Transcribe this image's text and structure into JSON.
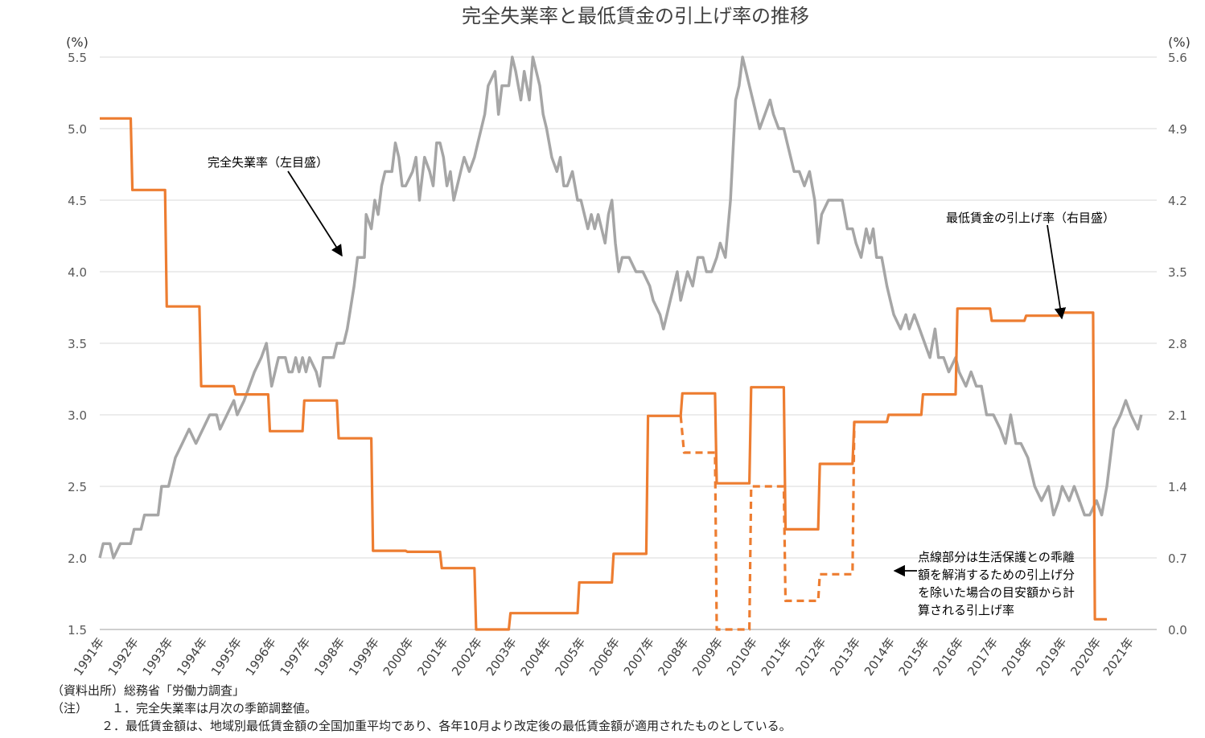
{
  "chart_data": {
    "type": "line",
    "title": "完全失業率と最低賃金の引上げ率の推移",
    "y_left": {
      "unit": "(%)",
      "range": [
        1.5,
        5.5
      ],
      "ticks": [
        "1.5",
        "2.0",
        "2.5",
        "3.0",
        "3.5",
        "4.0",
        "4.5",
        "5.0",
        "5.5"
      ]
    },
    "y_right": {
      "unit": "(%)",
      "range": [
        0.0,
        5.6
      ],
      "ticks": [
        "0.0",
        "0.7",
        "1.4",
        "2.1",
        "2.8",
        "3.5",
        "4.2",
        "4.9",
        "5.6"
      ]
    },
    "x_range": [
      1991,
      2021.75
    ],
    "x_tick_labels": [
      "1991年",
      "1992年",
      "1993年",
      "1994年",
      "1995年",
      "1996年",
      "1997年",
      "1998年",
      "1999年",
      "2000年",
      "2001年",
      "2002年",
      "2003年",
      "2004年",
      "2005年",
      "2006年",
      "2007年",
      "2008年",
      "2009年",
      "2010年",
      "2011年",
      "2012年",
      "2013年",
      "2014年",
      "2015年",
      "2016年",
      "2017年",
      "2018年",
      "2019年",
      "2020年",
      "2021年"
    ],
    "grid": true,
    "series": [
      {
        "name": "完全失業率（左目盛）",
        "axis": "left",
        "color": "#a6a6a6",
        "points": [
          [
            1991.0,
            2.0
          ],
          [
            1991.1,
            2.1
          ],
          [
            1991.3,
            2.1
          ],
          [
            1991.4,
            2.0
          ],
          [
            1991.6,
            2.1
          ],
          [
            1991.9,
            2.1
          ],
          [
            1992.0,
            2.2
          ],
          [
            1992.2,
            2.2
          ],
          [
            1992.3,
            2.3
          ],
          [
            1992.7,
            2.3
          ],
          [
            1992.8,
            2.5
          ],
          [
            1993.0,
            2.5
          ],
          [
            1993.2,
            2.7
          ],
          [
            1993.4,
            2.8
          ],
          [
            1993.6,
            2.9
          ],
          [
            1993.8,
            2.8
          ],
          [
            1994.0,
            2.9
          ],
          [
            1994.2,
            3.0
          ],
          [
            1994.4,
            3.0
          ],
          [
            1994.5,
            2.9
          ],
          [
            1994.7,
            3.0
          ],
          [
            1994.9,
            3.1
          ],
          [
            1995.0,
            3.0
          ],
          [
            1995.2,
            3.1
          ],
          [
            1995.5,
            3.3
          ],
          [
            1995.7,
            3.4
          ],
          [
            1995.85,
            3.5
          ],
          [
            1996.0,
            3.2
          ],
          [
            1996.2,
            3.4
          ],
          [
            1996.4,
            3.4
          ],
          [
            1996.5,
            3.3
          ],
          [
            1996.6,
            3.3
          ],
          [
            1996.7,
            3.4
          ],
          [
            1996.8,
            3.3
          ],
          [
            1996.9,
            3.4
          ],
          [
            1997.0,
            3.3
          ],
          [
            1997.1,
            3.4
          ],
          [
            1997.3,
            3.3
          ],
          [
            1997.4,
            3.2
          ],
          [
            1997.5,
            3.4
          ],
          [
            1997.8,
            3.4
          ],
          [
            1997.9,
            3.5
          ],
          [
            1998.1,
            3.5
          ],
          [
            1998.2,
            3.6
          ],
          [
            1998.4,
            3.9
          ],
          [
            1998.5,
            4.1
          ],
          [
            1998.7,
            4.1
          ],
          [
            1998.75,
            4.4
          ],
          [
            1998.9,
            4.3
          ],
          [
            1999.0,
            4.5
          ],
          [
            1999.1,
            4.4
          ],
          [
            1999.2,
            4.6
          ],
          [
            1999.3,
            4.7
          ],
          [
            1999.5,
            4.7
          ],
          [
            1999.6,
            4.9
          ],
          [
            1999.7,
            4.8
          ],
          [
            1999.8,
            4.6
          ],
          [
            1999.9,
            4.6
          ],
          [
            2000.1,
            4.7
          ],
          [
            2000.2,
            4.8
          ],
          [
            2000.3,
            4.5
          ],
          [
            2000.45,
            4.8
          ],
          [
            2000.6,
            4.7
          ],
          [
            2000.7,
            4.6
          ],
          [
            2000.8,
            4.9
          ],
          [
            2000.9,
            4.9
          ],
          [
            2001.0,
            4.8
          ],
          [
            2001.1,
            4.6
          ],
          [
            2001.2,
            4.7
          ],
          [
            2001.3,
            4.5
          ],
          [
            2001.4,
            4.6
          ],
          [
            2001.5,
            4.7
          ],
          [
            2001.6,
            4.8
          ],
          [
            2001.75,
            4.7
          ],
          [
            2001.9,
            4.8
          ],
          [
            2002.0,
            4.9
          ],
          [
            2002.1,
            5.0
          ],
          [
            2002.2,
            5.1
          ],
          [
            2002.3,
            5.3
          ],
          [
            2002.5,
            5.4
          ],
          [
            2002.6,
            5.1
          ],
          [
            2002.7,
            5.3
          ],
          [
            2002.9,
            5.3
          ],
          [
            2003.0,
            5.5
          ],
          [
            2003.1,
            5.4
          ],
          [
            2003.25,
            5.2
          ],
          [
            2003.35,
            5.4
          ],
          [
            2003.5,
            5.2
          ],
          [
            2003.6,
            5.5
          ],
          [
            2003.8,
            5.3
          ],
          [
            2003.9,
            5.1
          ],
          [
            2004.0,
            5.0
          ],
          [
            2004.15,
            4.8
          ],
          [
            2004.3,
            4.7
          ],
          [
            2004.4,
            4.8
          ],
          [
            2004.5,
            4.6
          ],
          [
            2004.6,
            4.6
          ],
          [
            2004.75,
            4.7
          ],
          [
            2004.9,
            4.5
          ],
          [
            2005.0,
            4.5
          ],
          [
            2005.1,
            4.4
          ],
          [
            2005.2,
            4.3
          ],
          [
            2005.3,
            4.4
          ],
          [
            2005.4,
            4.3
          ],
          [
            2005.5,
            4.4
          ],
          [
            2005.6,
            4.3
          ],
          [
            2005.7,
            4.2
          ],
          [
            2005.8,
            4.4
          ],
          [
            2005.9,
            4.5
          ],
          [
            2006.0,
            4.2
          ],
          [
            2006.1,
            4.0
          ],
          [
            2006.2,
            4.1
          ],
          [
            2006.4,
            4.1
          ],
          [
            2006.6,
            4.0
          ],
          [
            2006.8,
            4.0
          ],
          [
            2007.0,
            3.9
          ],
          [
            2007.1,
            3.8
          ],
          [
            2007.3,
            3.7
          ],
          [
            2007.4,
            3.6
          ],
          [
            2007.5,
            3.7
          ],
          [
            2007.6,
            3.8
          ],
          [
            2007.7,
            3.9
          ],
          [
            2007.8,
            4.0
          ],
          [
            2007.85,
            3.9
          ],
          [
            2007.9,
            3.8
          ],
          [
            2008.0,
            3.9
          ],
          [
            2008.1,
            4.0
          ],
          [
            2008.25,
            3.9
          ],
          [
            2008.4,
            4.1
          ],
          [
            2008.55,
            4.1
          ],
          [
            2008.65,
            4.0
          ],
          [
            2008.8,
            4.0
          ],
          [
            2008.95,
            4.1
          ],
          [
            2009.05,
            4.2
          ],
          [
            2009.2,
            4.1
          ],
          [
            2009.35,
            4.5
          ],
          [
            2009.5,
            5.2
          ],
          [
            2009.6,
            5.3
          ],
          [
            2009.7,
            5.5
          ],
          [
            2009.8,
            5.4
          ],
          [
            2009.9,
            5.3
          ],
          [
            2010.0,
            5.2
          ],
          [
            2010.1,
            5.1
          ],
          [
            2010.2,
            5.0
          ],
          [
            2010.35,
            5.1
          ],
          [
            2010.5,
            5.2
          ],
          [
            2010.6,
            5.1
          ],
          [
            2010.75,
            5.0
          ],
          [
            2010.9,
            5.0
          ],
          [
            2011.0,
            4.9
          ],
          [
            2011.2,
            4.7
          ],
          [
            2011.35,
            4.7
          ],
          [
            2011.5,
            4.6
          ],
          [
            2011.65,
            4.7
          ],
          [
            2011.8,
            4.5
          ],
          [
            2011.9,
            4.2
          ],
          [
            2012.0,
            4.4
          ],
          [
            2012.2,
            4.5
          ],
          [
            2012.6,
            4.5
          ],
          [
            2012.75,
            4.3
          ],
          [
            2012.9,
            4.3
          ],
          [
            2013.0,
            4.2
          ],
          [
            2013.15,
            4.1
          ],
          [
            2013.3,
            4.3
          ],
          [
            2013.4,
            4.2
          ],
          [
            2013.5,
            4.3
          ],
          [
            2013.6,
            4.1
          ],
          [
            2013.75,
            4.1
          ],
          [
            2013.9,
            3.9
          ],
          [
            2014.0,
            3.8
          ],
          [
            2014.1,
            3.7
          ],
          [
            2014.3,
            3.6
          ],
          [
            2014.45,
            3.7
          ],
          [
            2014.55,
            3.6
          ],
          [
            2014.7,
            3.7
          ],
          [
            2014.85,
            3.6
          ],
          [
            2015.0,
            3.5
          ],
          [
            2015.15,
            3.4
          ],
          [
            2015.3,
            3.6
          ],
          [
            2015.4,
            3.4
          ],
          [
            2015.55,
            3.4
          ],
          [
            2015.7,
            3.3
          ],
          [
            2015.9,
            3.4
          ],
          [
            2016.0,
            3.3
          ],
          [
            2016.2,
            3.2
          ],
          [
            2016.35,
            3.3
          ],
          [
            2016.5,
            3.2
          ],
          [
            2016.65,
            3.2
          ],
          [
            2016.8,
            3.0
          ],
          [
            2017.0,
            3.0
          ],
          [
            2017.2,
            2.9
          ],
          [
            2017.35,
            2.8
          ],
          [
            2017.5,
            3.0
          ],
          [
            2017.65,
            2.8
          ],
          [
            2017.8,
            2.8
          ],
          [
            2018.0,
            2.7
          ],
          [
            2018.2,
            2.5
          ],
          [
            2018.4,
            2.4
          ],
          [
            2018.6,
            2.5
          ],
          [
            2018.75,
            2.3
          ],
          [
            2018.9,
            2.4
          ],
          [
            2019.0,
            2.5
          ],
          [
            2019.2,
            2.4
          ],
          [
            2019.35,
            2.5
          ],
          [
            2019.5,
            2.4
          ],
          [
            2019.65,
            2.3
          ],
          [
            2019.8,
            2.3
          ],
          [
            2020.0,
            2.4
          ],
          [
            2020.15,
            2.3
          ],
          [
            2020.3,
            2.5
          ],
          [
            2020.5,
            2.9
          ],
          [
            2020.7,
            3.0
          ],
          [
            2020.85,
            3.1
          ],
          [
            2021.0,
            3.0
          ],
          [
            2021.2,
            2.9
          ],
          [
            2021.3,
            3.0
          ]
        ]
      },
      {
        "name": "最低賃金の引上げ率（右目盛）",
        "axis": "right",
        "color": "#ed7d31",
        "points": [
          [
            1991.0,
            5.0
          ],
          [
            1991.9,
            5.0
          ],
          [
            1991.95,
            4.3
          ],
          [
            1992.9,
            4.3
          ],
          [
            1992.95,
            3.16
          ],
          [
            1993.9,
            3.16
          ],
          [
            1993.95,
            2.38
          ],
          [
            1994.9,
            2.38
          ],
          [
            1994.95,
            2.3
          ],
          [
            1995.9,
            2.3
          ],
          [
            1995.95,
            1.94
          ],
          [
            1996.9,
            1.94
          ],
          [
            1996.95,
            2.24
          ],
          [
            1997.9,
            2.24
          ],
          [
            1997.95,
            1.87
          ],
          [
            1998.9,
            1.87
          ],
          [
            1998.95,
            0.77
          ],
          [
            1999.9,
            0.77
          ],
          [
            1999.95,
            0.76
          ],
          [
            2000.9,
            0.76
          ],
          [
            2000.95,
            0.6
          ],
          [
            2001.9,
            0.6
          ],
          [
            2001.95,
            0.0
          ],
          [
            2002.9,
            0.0
          ],
          [
            2002.95,
            0.16
          ],
          [
            2004.9,
            0.16
          ],
          [
            2004.95,
            0.46
          ],
          [
            2005.9,
            0.46
          ],
          [
            2005.95,
            0.74
          ],
          [
            2006.9,
            0.74
          ],
          [
            2006.95,
            2.09
          ],
          [
            2007.9,
            2.09
          ],
          [
            2007.95,
            2.31
          ],
          [
            2008.9,
            2.31
          ],
          [
            2008.95,
            1.43
          ],
          [
            2009.9,
            1.43
          ],
          [
            2009.95,
            2.37
          ],
          [
            2010.9,
            2.37
          ],
          [
            2010.95,
            0.98
          ],
          [
            2011.9,
            0.98
          ],
          [
            2011.95,
            1.62
          ],
          [
            2012.9,
            1.62
          ],
          [
            2012.95,
            2.03
          ],
          [
            2013.9,
            2.03
          ],
          [
            2013.95,
            2.1
          ],
          [
            2014.9,
            2.1
          ],
          [
            2014.95,
            2.3
          ],
          [
            2015.9,
            2.3
          ],
          [
            2015.95,
            3.14
          ],
          [
            2016.9,
            3.14
          ],
          [
            2016.95,
            3.02
          ],
          [
            2017.9,
            3.02
          ],
          [
            2017.95,
            3.07
          ],
          [
            2018.9,
            3.07
          ],
          [
            2018.95,
            3.1
          ],
          [
            2019.9,
            3.1
          ],
          [
            2019.95,
            0.1
          ],
          [
            2020.3,
            0.1
          ]
        ]
      },
      {
        "name": "点線部分（乖離解消分を除いた引上げ率）",
        "axis": "right",
        "color": "#ed7d31",
        "style": "dashed",
        "points": [
          [
            2007.9,
            2.09
          ],
          [
            2008.0,
            1.73
          ],
          [
            2008.9,
            1.73
          ],
          [
            2008.95,
            0.0
          ],
          [
            2009.9,
            0.0
          ],
          [
            2009.95,
            1.4
          ],
          [
            2010.9,
            1.4
          ],
          [
            2010.95,
            0.28
          ],
          [
            2011.9,
            0.28
          ],
          [
            2011.95,
            0.54
          ],
          [
            2012.9,
            0.54
          ],
          [
            2012.95,
            2.03
          ]
        ]
      }
    ],
    "annotations": {
      "unemployment_label": "完全失業率（左目盛）",
      "wage_label": "最低賃金の引上げ率（右目盛）",
      "dashed_note": [
        "点線部分は生活保護との乖離",
        "額を解消するための引上げ分",
        "を除いた場合の目安額から計",
        "算される引上げ率"
      ]
    }
  },
  "notes": {
    "source": "（資料出所）総務省「労働力調査」",
    "note_label": "（注）",
    "note1": "１．完全失業率は月次の季節調整値。",
    "note2": "２．最低賃金額は、地域別最低賃金額の全国加重平均であり、各年10月より改定後の最低賃金額が適用されたものとしている。"
  }
}
